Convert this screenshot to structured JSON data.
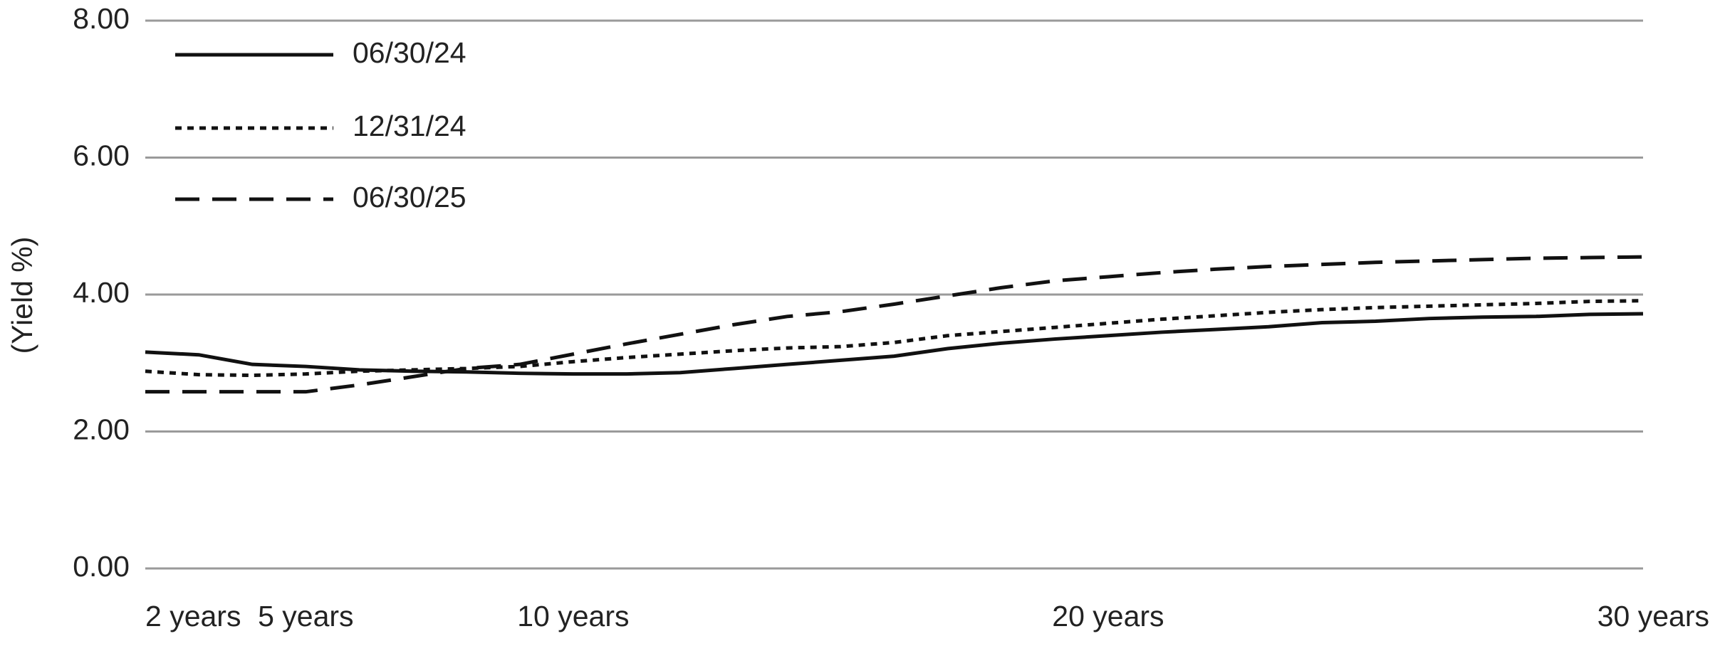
{
  "chart_data": {
    "type": "line",
    "y_label": "(Yield %)",
    "x": [
      2,
      3,
      4,
      5,
      6,
      7,
      8,
      9,
      10,
      11,
      12,
      13,
      14,
      15,
      16,
      17,
      18,
      19,
      20,
      21,
      22,
      23,
      24,
      25,
      26,
      27,
      28,
      29,
      30
    ],
    "xlim": [
      2,
      30
    ],
    "xticks": [
      {
        "value": 2,
        "label": "2 years"
      },
      {
        "value": 5,
        "label": "5 years"
      },
      {
        "value": 10,
        "label": "10 years"
      },
      {
        "value": 20,
        "label": "20 years"
      },
      {
        "value": 30,
        "label": "30 years"
      }
    ],
    "ylim": [
      0,
      8
    ],
    "yticks": [
      {
        "value": 0,
        "label": "0.00"
      },
      {
        "value": 2,
        "label": "2.00"
      },
      {
        "value": 4,
        "label": "4.00"
      },
      {
        "value": 6,
        "label": "6.00"
      },
      {
        "value": 8,
        "label": "8.00"
      }
    ],
    "grid": true,
    "legend": "upper left",
    "series": [
      {
        "name": "06/30/24",
        "color": "#111111",
        "line_style": "solid",
        "values": [
          3.16,
          3.12,
          2.98,
          2.95,
          2.9,
          2.88,
          2.87,
          2.85,
          2.84,
          2.84,
          2.86,
          2.92,
          2.98,
          3.04,
          3.1,
          3.21,
          3.29,
          3.35,
          3.4,
          3.45,
          3.49,
          3.53,
          3.59,
          3.61,
          3.65,
          3.67,
          3.68,
          3.71,
          3.72
        ]
      },
      {
        "name": "12/31/24",
        "color": "#111111",
        "line_style": "dotted",
        "values": [
          2.88,
          2.83,
          2.82,
          2.84,
          2.88,
          2.9,
          2.92,
          2.95,
          3.02,
          3.08,
          3.13,
          3.18,
          3.22,
          3.24,
          3.3,
          3.4,
          3.46,
          3.52,
          3.58,
          3.64,
          3.69,
          3.74,
          3.78,
          3.81,
          3.83,
          3.85,
          3.87,
          3.9,
          3.91
        ]
      },
      {
        "name": "06/30/25",
        "color": "#111111",
        "line_style": "dashed",
        "values": [
          2.58,
          2.58,
          2.58,
          2.58,
          2.68,
          2.8,
          2.92,
          2.98,
          3.13,
          3.28,
          3.42,
          3.56,
          3.68,
          3.75,
          3.86,
          3.98,
          4.1,
          4.2,
          4.26,
          4.32,
          4.37,
          4.41,
          4.44,
          4.47,
          4.49,
          4.51,
          4.53,
          4.54,
          4.55
        ]
      }
    ]
  }
}
